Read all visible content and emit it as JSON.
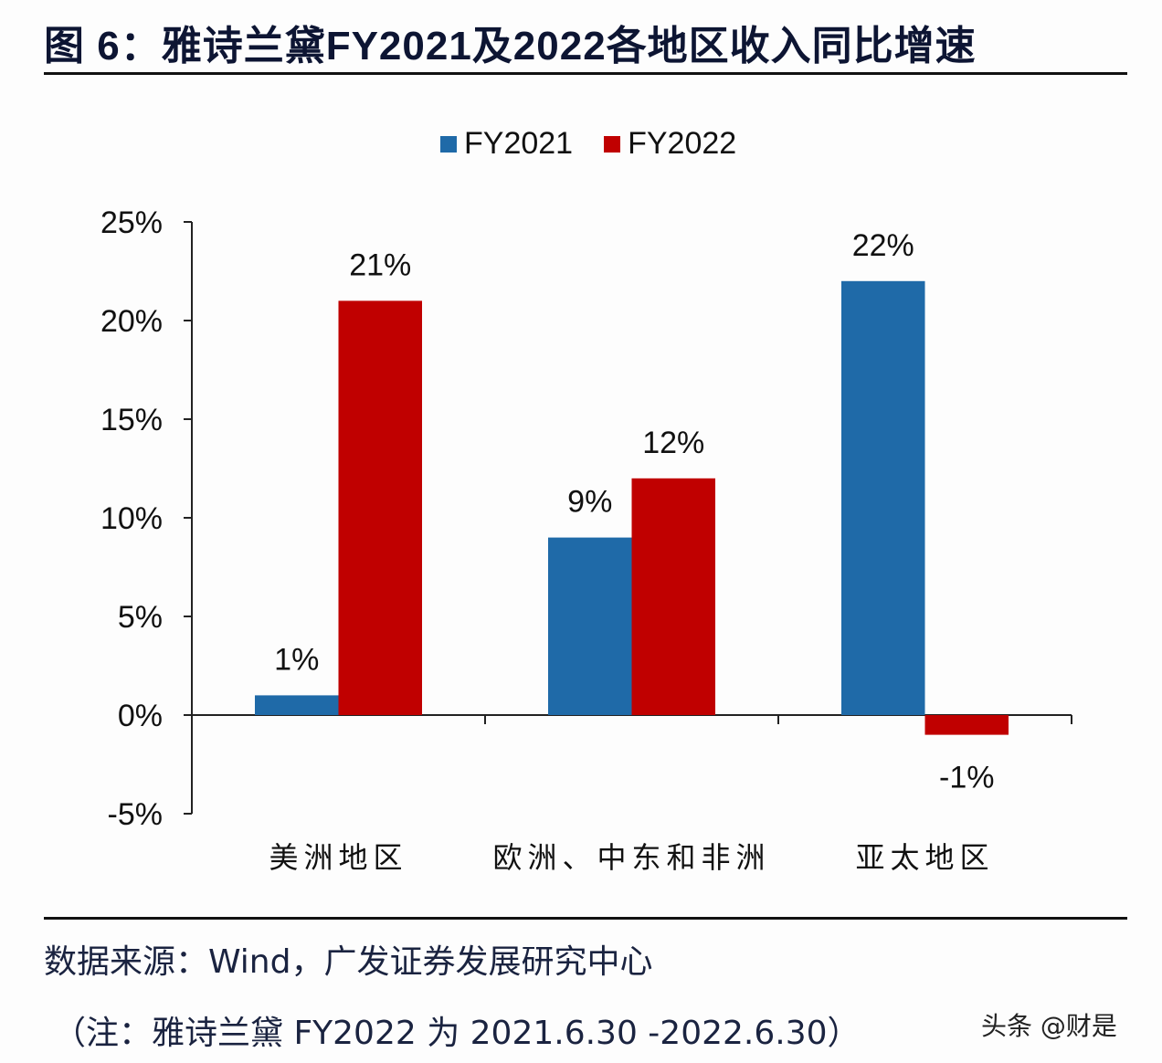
{
  "header": {
    "title": "图 6：雅诗兰黛FY2021及2022各地区收入同比增速"
  },
  "legend": [
    {
      "label": "FY2021",
      "color": "#1f6aa8"
    },
    {
      "label": "FY2022",
      "color": "#c00000"
    }
  ],
  "chart_data": {
    "type": "bar",
    "title": "雅诗兰黛FY2021及2022各地区收入同比增速",
    "categories": [
      "美洲地区",
      "欧洲、中东和非洲",
      "亚太地区"
    ],
    "series": [
      {
        "name": "FY2021",
        "color": "#1f6aa8",
        "values": [
          1,
          9,
          22
        ]
      },
      {
        "name": "FY2022",
        "color": "#c00000",
        "values": [
          21,
          12,
          -1
        ]
      }
    ],
    "data_labels": {
      "FY2021": [
        "1%",
        "9%",
        "22%"
      ],
      "FY2022": [
        "21%",
        "12%",
        "-1%"
      ]
    },
    "unit": "%",
    "xlabel": "",
    "ylabel": "",
    "ylim": [
      -5,
      25
    ],
    "yticks": [
      "25%",
      "20%",
      "15%",
      "10%",
      "5%",
      "0%",
      "-5%"
    ],
    "grid": false,
    "legend_position": "top"
  },
  "footer": {
    "source": "数据来源：Wind，广发证券发展研究中心",
    "note": "（注：雅诗兰黛 FY2022 为 2021.6.30 -2022.6.30）",
    "watermark": "头条 @财是"
  }
}
